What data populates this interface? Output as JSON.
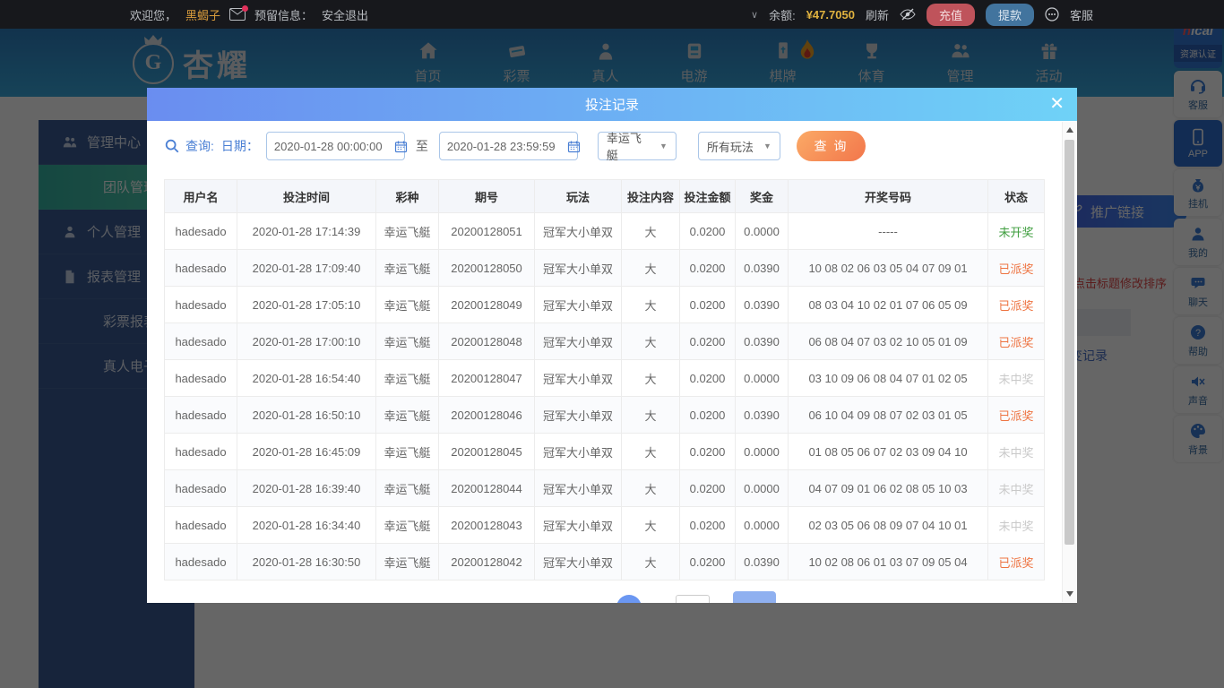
{
  "topbar": {
    "welcome_prefix": "欢迎您，",
    "username": "黑蝎子",
    "reserved_label": "预留信息：",
    "logout_label": "安全退出",
    "balance_label": "余额:",
    "balance_amount": "¥47.7050",
    "refresh_label": "刷新",
    "recharge_label": "充值",
    "withdraw_label": "提款",
    "service_label": "客服"
  },
  "navbar": {
    "logo_text": "杏耀",
    "logo_letter": "G",
    "items": [
      {
        "label": "首页"
      },
      {
        "label": "彩票"
      },
      {
        "label": "真人"
      },
      {
        "label": "电游"
      },
      {
        "label": "棋牌",
        "hot": true
      },
      {
        "label": "体育"
      },
      {
        "label": "管理"
      },
      {
        "label": "活动"
      }
    ]
  },
  "sidebar": {
    "items": [
      {
        "label": "管理中心"
      },
      {
        "label": "团队管理",
        "active": true
      },
      {
        "label": "个人管理"
      },
      {
        "label": "报表管理"
      },
      {
        "label": "彩票报表"
      },
      {
        "label": "真人电子体育"
      }
    ]
  },
  "bg_content": {
    "promo_button": "推广链接",
    "sort_hint": "可点击标题修改排序",
    "account_link": "帐变记录"
  },
  "side_toolbar": {
    "logo_line1": "nicai",
    "logo_line2": "资源认证",
    "items": [
      {
        "label": "客服"
      },
      {
        "label": "APP",
        "highlight": true
      },
      {
        "label": "挂机"
      },
      {
        "label": "我的"
      },
      {
        "label": "聊天"
      },
      {
        "label": "帮助"
      },
      {
        "label": "声音"
      },
      {
        "label": "背景"
      }
    ]
  },
  "modal": {
    "title": "投注记录",
    "close_glyph": "✕",
    "query": {
      "search_label": "查询:",
      "date_label": "日期：",
      "date_from": "2020-01-28 00:00:00",
      "to_label": "至",
      "date_to": "2020-01-28 23:59:59",
      "lottery_select": "幸运飞艇",
      "play_select": "所有玩法",
      "submit_label": "查 询"
    },
    "table": {
      "headers": [
        "用户名",
        "投注时间",
        "彩种",
        "期号",
        "玩法",
        "投注内容",
        "投注金额",
        "奖金",
        "开奖号码",
        "状态"
      ],
      "rows": [
        {
          "user": "hadesado",
          "time": "2020-01-28 17:14:39",
          "lottery": "幸运飞艇",
          "issue": "20200128051",
          "play": "冠军大小单双",
          "content": "大",
          "amount": "0.0200",
          "prize": "0.0000",
          "numbers": "-----",
          "status": "未开奖",
          "status_class": "pending"
        },
        {
          "user": "hadesado",
          "time": "2020-01-28 17:09:40",
          "lottery": "幸运飞艇",
          "issue": "20200128050",
          "play": "冠军大小单双",
          "content": "大",
          "amount": "0.0200",
          "prize": "0.0390",
          "numbers": "10 08 02 06 03 05 04 07 09 01",
          "status": "已派奖",
          "status_class": "paid"
        },
        {
          "user": "hadesado",
          "time": "2020-01-28 17:05:10",
          "lottery": "幸运飞艇",
          "issue": "20200128049",
          "play": "冠军大小单双",
          "content": "大",
          "amount": "0.0200",
          "prize": "0.0390",
          "numbers": "08 03 04 10 02 01 07 06 05 09",
          "status": "已派奖",
          "status_class": "paid"
        },
        {
          "user": "hadesado",
          "time": "2020-01-28 17:00:10",
          "lottery": "幸运飞艇",
          "issue": "20200128048",
          "play": "冠军大小单双",
          "content": "大",
          "amount": "0.0200",
          "prize": "0.0390",
          "numbers": "06 08 04 07 03 02 10 05 01 09",
          "status": "已派奖",
          "status_class": "paid"
        },
        {
          "user": "hadesado",
          "time": "2020-01-28 16:54:40",
          "lottery": "幸运飞艇",
          "issue": "20200128047",
          "play": "冠军大小单双",
          "content": "大",
          "amount": "0.0200",
          "prize": "0.0000",
          "numbers": "03 10 09 06 08 04 07 01 02 05",
          "status": "未中奖",
          "status_class": "miss"
        },
        {
          "user": "hadesado",
          "time": "2020-01-28 16:50:10",
          "lottery": "幸运飞艇",
          "issue": "20200128046",
          "play": "冠军大小单双",
          "content": "大",
          "amount": "0.0200",
          "prize": "0.0390",
          "numbers": "06 10 04 09 08 07 02 03 01 05",
          "status": "已派奖",
          "status_class": "paid"
        },
        {
          "user": "hadesado",
          "time": "2020-01-28 16:45:09",
          "lottery": "幸运飞艇",
          "issue": "20200128045",
          "play": "冠军大小单双",
          "content": "大",
          "amount": "0.0200",
          "prize": "0.0000",
          "numbers": "01 08 05 06 07 02 03 09 04 10",
          "status": "未中奖",
          "status_class": "miss"
        },
        {
          "user": "hadesado",
          "time": "2020-01-28 16:39:40",
          "lottery": "幸运飞艇",
          "issue": "20200128044",
          "play": "冠军大小单双",
          "content": "大",
          "amount": "0.0200",
          "prize": "0.0000",
          "numbers": "04 07 09 01 06 02 08 05 10 03",
          "status": "未中奖",
          "status_class": "miss"
        },
        {
          "user": "hadesado",
          "time": "2020-01-28 16:34:40",
          "lottery": "幸运飞艇",
          "issue": "20200128043",
          "play": "冠军大小单双",
          "content": "大",
          "amount": "0.0200",
          "prize": "0.0000",
          "numbers": "02 03 05 06 08 09 07 04 10 01",
          "status": "未中奖",
          "status_class": "miss"
        },
        {
          "user": "hadesado",
          "time": "2020-01-28 16:30:50",
          "lottery": "幸运飞艇",
          "issue": "20200128042",
          "play": "冠军大小单双",
          "content": "大",
          "amount": "0.0200",
          "prize": "0.0390",
          "numbers": "10 02 08 06 01 03 07 09 05 04",
          "status": "已派奖",
          "status_class": "paid"
        }
      ]
    }
  },
  "colors": {
    "status_pending": "#3f9e3f",
    "status_paid": "#ee7340",
    "status_miss": "#c9c9c9",
    "modal_header_from": "#6a8df0",
    "modal_header_to": "#6fd2f7",
    "search_button": "#f2764b",
    "balance_text": "#e0b23f",
    "active_sidebar": "#35b3a2"
  }
}
